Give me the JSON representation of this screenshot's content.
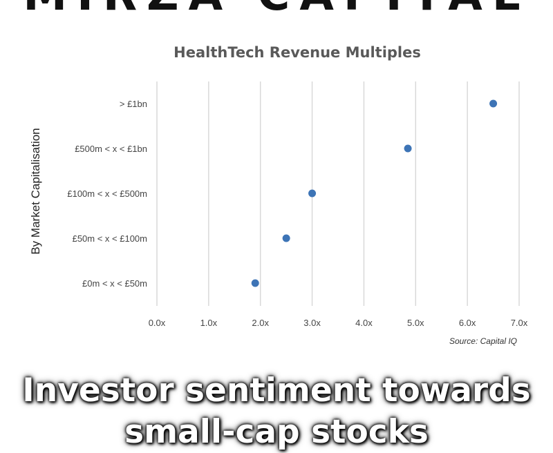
{
  "banner": {
    "text": "MIRZA CAPITAL"
  },
  "caption": {
    "line1": "Investor sentiment towards",
    "line2": "small-cap stocks"
  },
  "chart_data": {
    "type": "scatter",
    "title": "HealthTech Revenue Multiples",
    "ylabel": "By Market Capitalisation",
    "xlabel": "",
    "categories": [
      "> £1bn",
      "£500m < x < £1bn",
      "£100m < x < £500m",
      "£50m < x < £100m",
      "£0m < x < £50m"
    ],
    "values": [
      6.5,
      4.85,
      3.0,
      2.5,
      1.9
    ],
    "xlim": [
      0,
      7
    ],
    "x_ticks": [
      {
        "value": 0,
        "label": "0.0x"
      },
      {
        "value": 1,
        "label": "1.0x"
      },
      {
        "value": 2,
        "label": "2.0x"
      },
      {
        "value": 3,
        "label": "3.0x"
      },
      {
        "value": 4,
        "label": "4.0x"
      },
      {
        "value": 5,
        "label": "5.0x"
      },
      {
        "value": 6,
        "label": "6.0x"
      },
      {
        "value": 7,
        "label": "7.0x"
      }
    ],
    "grid": "vertical",
    "marker_color": "#3d74b6",
    "source": "Source: Capital IQ"
  }
}
